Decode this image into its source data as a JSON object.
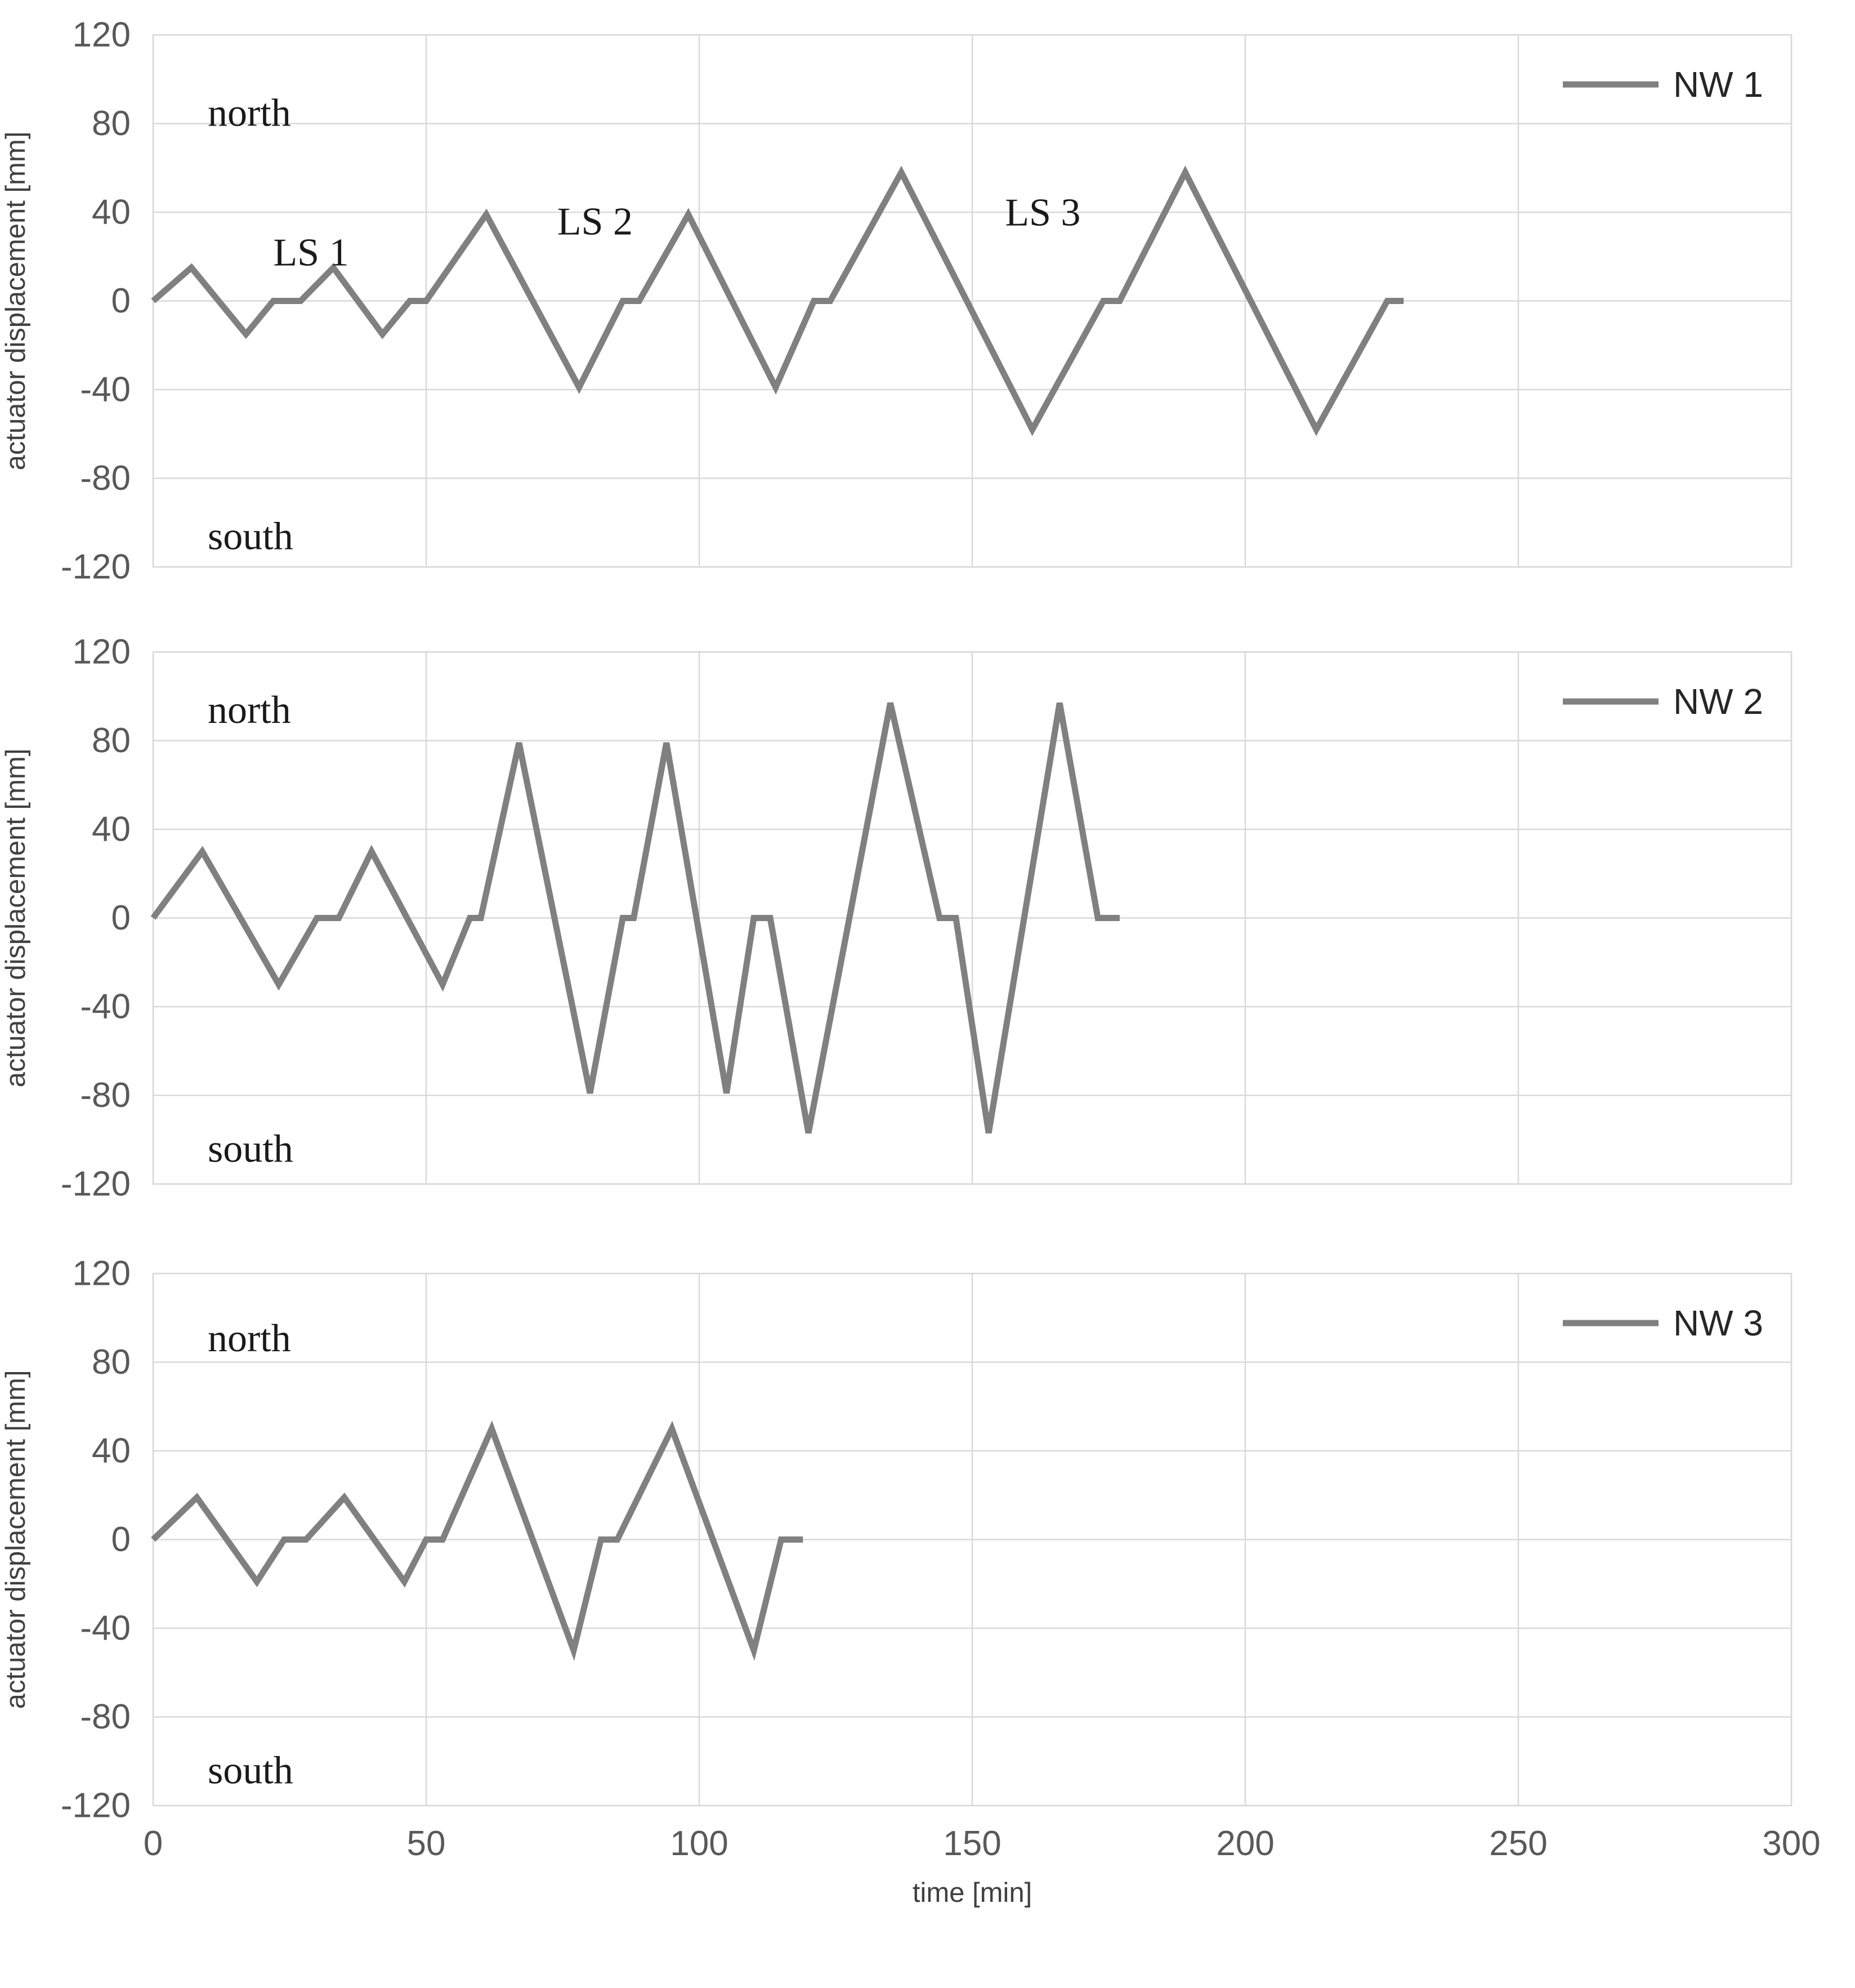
{
  "figure": {
    "background": "#ffffff",
    "grid_color": "#d9d9d9",
    "line_color": "#808080",
    "tick_color": "#595959"
  },
  "chart_data": [
    {
      "type": "line",
      "title": "",
      "xlabel": "time [min]",
      "ylabel": "actuator displacement [mm]",
      "xlim": [
        0,
        300
      ],
      "ylim": [
        -120,
        120
      ],
      "xticks": [
        0,
        50,
        100,
        150,
        200,
        250,
        300
      ],
      "yticks": [
        120,
        80,
        40,
        0,
        -40,
        -80,
        -120
      ],
      "grid": true,
      "show_x_axis": false,
      "legend": {
        "label": "NW 1",
        "position": "top-right"
      },
      "annotations": [
        {
          "text": "north",
          "t": 10,
          "mm": 79
        },
        {
          "text": "south",
          "t": 10,
          "mm": -112
        },
        {
          "text": "LS 1",
          "t": 22,
          "mm": 16
        },
        {
          "text": "LS 2",
          "t": 74,
          "mm": 30
        },
        {
          "text": "LS 3",
          "t": 156,
          "mm": 34
        }
      ],
      "series": [
        {
          "name": "NW 1",
          "color": "#808080",
          "points": [
            [
              0,
              0
            ],
            [
              7,
              15
            ],
            [
              17,
              -15
            ],
            [
              22,
              0
            ],
            [
              27,
              0
            ],
            [
              33,
              15
            ],
            [
              42,
              -15
            ],
            [
              47,
              0
            ],
            [
              50,
              0
            ],
            [
              61,
              39
            ],
            [
              78,
              -39
            ],
            [
              86,
              0
            ],
            [
              89,
              0
            ],
            [
              98,
              39
            ],
            [
              114,
              -39
            ],
            [
              121,
              0
            ],
            [
              124,
              0
            ],
            [
              137,
              58
            ],
            [
              161,
              -58
            ],
            [
              174,
              0
            ],
            [
              177,
              0
            ],
            [
              189,
              58
            ],
            [
              213,
              -58
            ],
            [
              226,
              0
            ],
            [
              229,
              0
            ]
          ]
        }
      ]
    },
    {
      "type": "line",
      "title": "",
      "xlabel": "time [min]",
      "ylabel": "actuator displacement [mm]",
      "xlim": [
        0,
        300
      ],
      "ylim": [
        -120,
        120
      ],
      "xticks": [
        0,
        50,
        100,
        150,
        200,
        250,
        300
      ],
      "yticks": [
        120,
        80,
        40,
        0,
        -40,
        -80,
        -120
      ],
      "grid": true,
      "show_x_axis": false,
      "legend": {
        "label": "NW 2",
        "position": "top-right"
      },
      "annotations": [
        {
          "text": "north",
          "t": 10,
          "mm": 88
        },
        {
          "text": "south",
          "t": 10,
          "mm": -110
        }
      ],
      "series": [
        {
          "name": "NW 2",
          "color": "#808080",
          "points": [
            [
              0,
              0
            ],
            [
              9,
              30
            ],
            [
              23,
              -30
            ],
            [
              30,
              0
            ],
            [
              34,
              0
            ],
            [
              40,
              30
            ],
            [
              53,
              -30
            ],
            [
              58,
              0
            ],
            [
              60,
              0
            ],
            [
              67,
              79
            ],
            [
              80,
              -79
            ],
            [
              86,
              0
            ],
            [
              88,
              0
            ],
            [
              94,
              79
            ],
            [
              105,
              -79
            ],
            [
              110,
              0
            ],
            [
              113,
              0
            ],
            [
              120,
              -97
            ],
            [
              135,
              97
            ],
            [
              144,
              0
            ],
            [
              147,
              0
            ],
            [
              153,
              -97
            ],
            [
              166,
              97
            ],
            [
              173,
              0
            ],
            [
              177,
              0
            ]
          ]
        }
      ]
    },
    {
      "type": "line",
      "title": "",
      "xlabel": "time [min]",
      "ylabel": "actuator displacement [mm]",
      "xlim": [
        0,
        300
      ],
      "ylim": [
        -120,
        120
      ],
      "xticks": [
        0,
        50,
        100,
        150,
        200,
        250,
        300
      ],
      "yticks": [
        120,
        80,
        40,
        0,
        -40,
        -80,
        -120
      ],
      "grid": true,
      "show_x_axis": true,
      "legend": {
        "label": "NW 3",
        "position": "top-right"
      },
      "annotations": [
        {
          "text": "north",
          "t": 10,
          "mm": 85
        },
        {
          "text": "south",
          "t": 10,
          "mm": -110
        }
      ],
      "series": [
        {
          "name": "NW 3",
          "color": "#808080",
          "points": [
            [
              0,
              0
            ],
            [
              8,
              19
            ],
            [
              19,
              -19
            ],
            [
              24,
              0
            ],
            [
              28,
              0
            ],
            [
              35,
              19
            ],
            [
              46,
              -19
            ],
            [
              50,
              0
            ],
            [
              53,
              0
            ],
            [
              62,
              50
            ],
            [
              77,
              -50
            ],
            [
              82,
              0
            ],
            [
              85,
              0
            ],
            [
              95,
              50
            ],
            [
              110,
              -50
            ],
            [
              115,
              0
            ],
            [
              119,
              0
            ]
          ]
        }
      ]
    }
  ]
}
